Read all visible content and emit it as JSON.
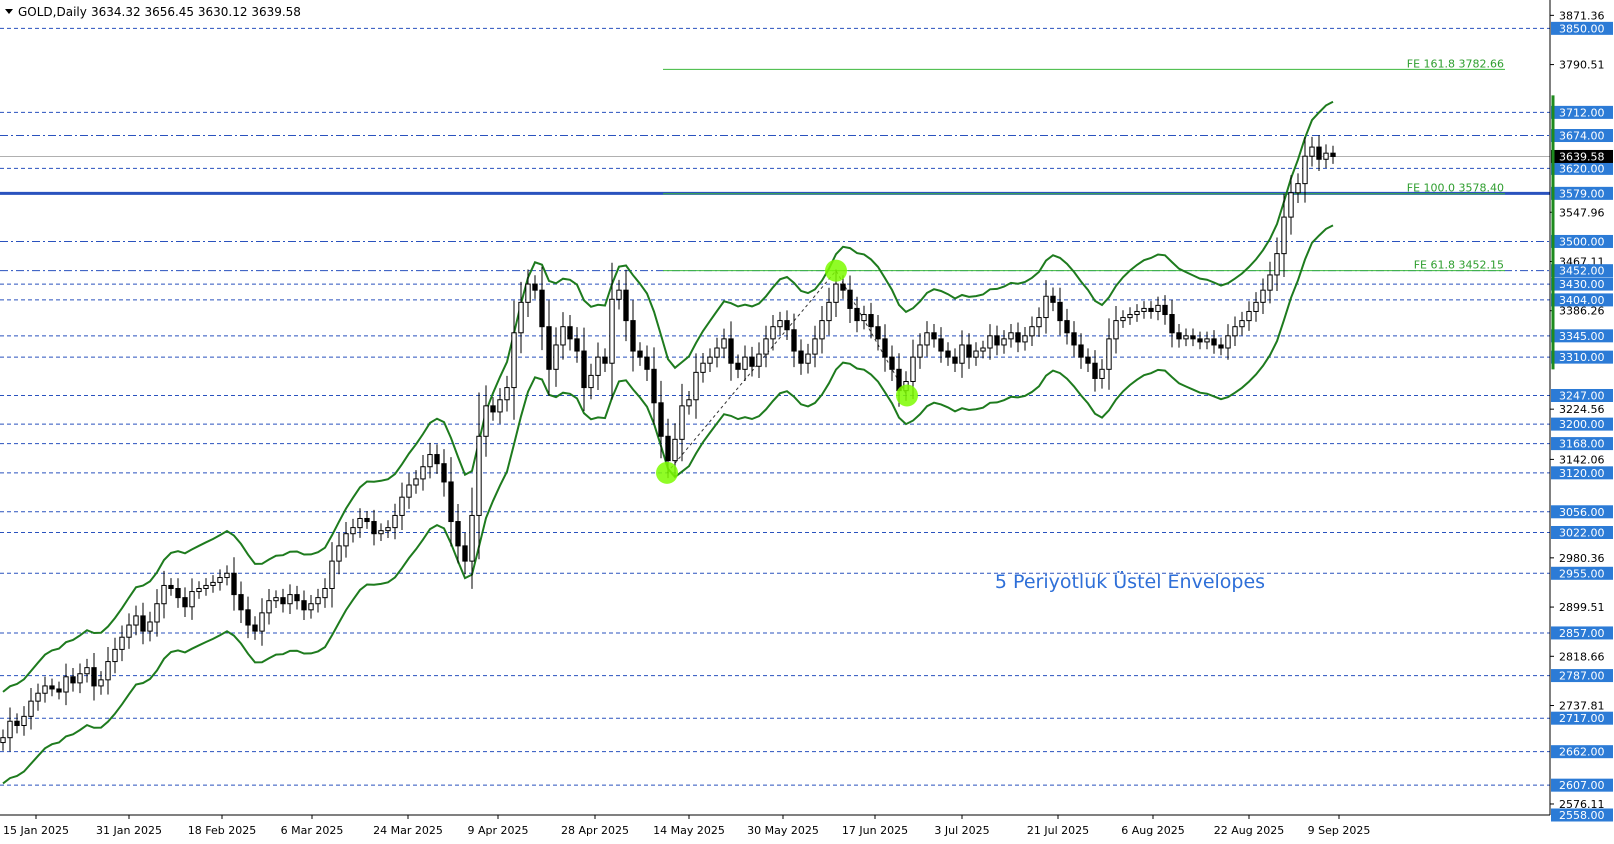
{
  "header": {
    "symbol": "GOLD,Daily",
    "ohlc": "3634.32 3656.45 3630.12 3639.58"
  },
  "annotation": "5 Periyotluk Üstel Envelopes",
  "colors": {
    "bull_candle": "#ffffff",
    "bear_candle": "#000000",
    "envelope": "#1e7b1e",
    "level_line": "#2a52be",
    "highlight_level": "#2a52be",
    "fib_line": "#3cb83c",
    "fib_text": "#2f9e2f",
    "badge_blue": "#2c7bd6",
    "badge_current": "#000000",
    "marker": "#7CFC00",
    "annotation_text": "#2e6fd8"
  },
  "chart_data": {
    "type": "candlestick",
    "symbol": "GOLD",
    "timeframe": "Daily",
    "y_range": [
      2558,
      3890
    ],
    "x_labels": [
      "15 Jan 2025",
      "31 Jan 2025",
      "18 Feb 2025",
      "6 Mar 2025",
      "24 Mar 2025",
      "9 Apr 2025",
      "28 Apr 2025",
      "14 May 2025",
      "30 May 2025",
      "17 Jun 2025",
      "3 Jul 2025",
      "21 Jul 2025",
      "6 Aug 2025",
      "22 Aug 2025",
      "9 Sep 2025"
    ],
    "y_tick_labels": [
      "3871.36",
      "3790.51",
      "3547.96",
      "3467.11",
      "3386.26",
      "3224.56",
      "3142.06",
      "2980.36",
      "2899.51",
      "2818.66",
      "2737.81",
      "2576.11"
    ],
    "horizontal_levels": [
      "3850.00",
      "3712.00",
      "3674.00",
      "3620.00",
      "3579.00",
      "3500.00",
      "3452.00",
      "3430.00",
      "3404.00",
      "3345.00",
      "3310.00",
      "3247.00",
      "3200.00",
      "3168.00",
      "3120.00",
      "3056.00",
      "3022.00",
      "2955.00",
      "2857.00",
      "2787.00",
      "2717.00",
      "2662.00",
      "2607.00",
      "2558.00"
    ],
    "highlighted_level": "3579.00",
    "current_price": "3639.58",
    "fibonacci_expansions": [
      {
        "label": "FE 161.8 3782.66",
        "price": 3782.66
      },
      {
        "label": "FE 100.0 3578.40",
        "price": 3578.4
      },
      {
        "label": "FE 61.8 3452.15",
        "price": 3452.15
      }
    ],
    "fib_points": [
      3120,
      3452,
      3247
    ],
    "indicator": "5 Periyotluk Üstel Envelopes",
    "close_series": [
      2685,
      2712,
      2705,
      2720,
      2745,
      2758,
      2770,
      2765,
      2760,
      2785,
      2775,
      2790,
      2800,
      2770,
      2780,
      2810,
      2830,
      2850,
      2870,
      2885,
      2860,
      2875,
      2905,
      2935,
      2930,
      2915,
      2900,
      2925,
      2930,
      2935,
      2940,
      2948,
      2955,
      2920,
      2895,
      2870,
      2860,
      2890,
      2910,
      2915,
      2905,
      2920,
      2910,
      2895,
      2905,
      2915,
      2930,
      2975,
      3000,
      3020,
      3030,
      3045,
      3040,
      3020,
      3025,
      3030,
      3050,
      3080,
      3100,
      3110,
      3130,
      3150,
      3135,
      3105,
      3040,
      3000,
      2975,
      3050,
      3180,
      3230,
      3220,
      3240,
      3260,
      3350,
      3400,
      3430,
      3420,
      3360,
      3290,
      3330,
      3360,
      3340,
      3320,
      3260,
      3280,
      3310,
      3300,
      3405,
      3420,
      3370,
      3320,
      3310,
      3290,
      3235,
      3180,
      3140,
      3175,
      3230,
      3240,
      3285,
      3300,
      3310,
      3325,
      3340,
      3300,
      3290,
      3310,
      3295,
      3315,
      3340,
      3360,
      3370,
      3355,
      3320,
      3300,
      3315,
      3340,
      3370,
      3400,
      3430,
      3420,
      3390,
      3370,
      3380,
      3360,
      3340,
      3310,
      3290,
      3255,
      3270,
      3310,
      3330,
      3350,
      3340,
      3320,
      3310,
      3300,
      3330,
      3310,
      3320,
      3325,
      3345,
      3330,
      3340,
      3350,
      3335,
      3345,
      3360,
      3375,
      3410,
      3400,
      3370,
      3350,
      3330,
      3310,
      3300,
      3275,
      3290,
      3340,
      3370,
      3375,
      3380,
      3385,
      3390,
      3385,
      3395,
      3380,
      3350,
      3340,
      3345,
      3340,
      3335,
      3340,
      3330,
      3325,
      3345,
      3360,
      3370,
      3385,
      3400,
      3420,
      3445,
      3480,
      3540,
      3580,
      3595,
      3640,
      3655,
      3635,
      3645,
      3639.58
    ]
  }
}
